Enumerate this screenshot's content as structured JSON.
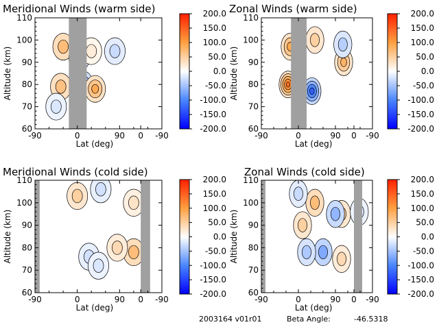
{
  "colorbar": {
    "ticks": [
      "200.0",
      "150.0",
      "100.0",
      "50.0",
      "0.0",
      "-50.0",
      "-100.0",
      "-150.0",
      "-200.0"
    ],
    "range": [
      -200,
      200
    ],
    "colors": [
      "#0000ff",
      "#4a86ff",
      "#ffffff",
      "#ffa040",
      "#ff2000"
    ]
  },
  "footer": {
    "date_version": "2003164 v01r01",
    "beta_label": "Beta Angle:",
    "beta_value": "-46.5318"
  },
  "chart_data": [
    {
      "type": "heatmap",
      "title": "Meridional Winds (warm side)",
      "xlabel": "Lat (deg)",
      "ylabel": "Altitude (km)",
      "xticks": [
        "-90",
        "0",
        "90",
        "0",
        "-90"
      ],
      "yticks": [
        "60",
        "70",
        "80",
        "90",
        "100",
        "110"
      ],
      "ylim": [
        60,
        110
      ],
      "data_gaps": [
        [
          -18,
          20
        ]
      ],
      "features": [
        {
          "x": -30,
          "y": 97,
          "value": 70
        },
        {
          "x": -35,
          "y": 79,
          "value": 65
        },
        {
          "x": 12,
          "y": 80,
          "value": -80
        },
        {
          "x": 4,
          "y": 92,
          "value": -40
        },
        {
          "x": 38,
          "y": 78,
          "value": 90
        },
        {
          "x": 30,
          "y": 95,
          "value": 20
        },
        {
          "x": 80,
          "y": 95,
          "value": -30
        },
        {
          "x": -45,
          "y": 70,
          "value": -20
        }
      ]
    },
    {
      "type": "heatmap",
      "title": "Zonal Winds (warm side)",
      "xlabel": "Lat (deg)",
      "ylabel": "Altitude (km)",
      "xticks": [
        "-90",
        "0",
        "90",
        "0",
        "-90"
      ],
      "yticks": [
        "60",
        "70",
        "80",
        "90",
        "100",
        "110"
      ],
      "ylim": [
        60,
        110
      ],
      "data_gaps": [
        [
          -18,
          20
        ]
      ],
      "features": [
        {
          "x": -20,
          "y": 97,
          "value": 90
        },
        {
          "x": -25,
          "y": 80,
          "value": 140
        },
        {
          "x": 33,
          "y": 77,
          "value": -130
        },
        {
          "x": 40,
          "y": 100,
          "value": 50
        },
        {
          "x": 110,
          "y": 90,
          "value": 80
        },
        {
          "x": 108,
          "y": 98,
          "value": -40
        }
      ]
    },
    {
      "type": "heatmap",
      "title": "Meridional Winds (cold side)",
      "xlabel": "Lat (deg)",
      "ylabel": "Altitude (km)",
      "xticks": [
        "-90",
        "0",
        "90",
        "0",
        "-90"
      ],
      "yticks": [
        "60",
        "70",
        "80",
        "90",
        "100",
        "110"
      ],
      "ylim": [
        60,
        110
      ],
      "data_gaps": [
        [
          -90,
          -80
        ],
        [
          135,
          155
        ]
      ],
      "features": [
        {
          "x": 0,
          "y": 103,
          "value": 50
        },
        {
          "x": 50,
          "y": 106,
          "value": -25
        },
        {
          "x": 120,
          "y": 100,
          "value": 30
        },
        {
          "x": 120,
          "y": 78,
          "value": 70
        },
        {
          "x": 85,
          "y": 80,
          "value": 40
        },
        {
          "x": 25,
          "y": 76,
          "value": -25
        },
        {
          "x": 45,
          "y": 72,
          "value": -20
        }
      ]
    },
    {
      "type": "heatmap",
      "title": "Zonal Winds (cold side)",
      "xlabel": "Lat (deg)",
      "ylabel": "Altitude (km)",
      "xticks": [
        "-90",
        "0",
        "90",
        "0",
        "-90"
      ],
      "yticks": [
        "60",
        "70",
        "80",
        "90",
        "100",
        "110"
      ],
      "ylim": [
        60,
        110
      ],
      "data_gaps": [
        [
          -90,
          -80
        ],
        [
          135,
          155
        ]
      ],
      "features": [
        {
          "x": 40,
          "y": 100,
          "value": 70
        },
        {
          "x": 10,
          "y": 90,
          "value": 50
        },
        {
          "x": 60,
          "y": 78,
          "value": -70
        },
        {
          "x": 20,
          "y": 78,
          "value": -45
        },
        {
          "x": 105,
          "y": 95,
          "value": 50
        },
        {
          "x": 105,
          "y": 75,
          "value": 40
        },
        {
          "x": 90,
          "y": 95,
          "value": -60
        },
        {
          "x": 0,
          "y": 104,
          "value": -30
        },
        {
          "x": 148,
          "y": 96,
          "value": -20
        }
      ]
    }
  ]
}
